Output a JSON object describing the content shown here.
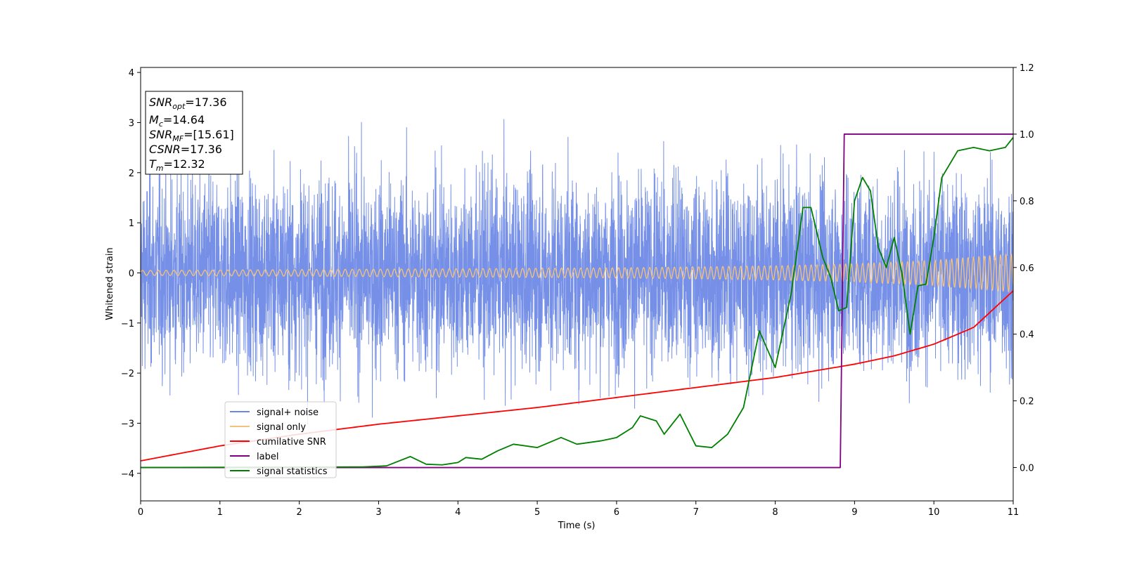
{
  "chart_data": {
    "type": "line",
    "xlabel": "Time (s)",
    "ylabel": "Whitened strain",
    "xlim": [
      0,
      11
    ],
    "ylim": [
      -4.55,
      4.1
    ],
    "y2lim": [
      -0.1,
      1.2
    ],
    "xticks": [
      "0",
      "1",
      "2",
      "3",
      "4",
      "5",
      "6",
      "7",
      "8",
      "9",
      "10",
      "11"
    ],
    "yticks": [
      "−4",
      "−3",
      "−2",
      "−1",
      "0",
      "1",
      "2",
      "3",
      "4"
    ],
    "y2ticks": [
      "0.0",
      "0.2",
      "0.4",
      "0.6",
      "0.8",
      "1.0",
      "1.2"
    ],
    "legend_position": "lower-left",
    "annotation": [
      {
        "sym": "SNR",
        "sub": "opt",
        "value": "=17.36"
      },
      {
        "sym": "M",
        "sub": "c",
        "value": "=14.64"
      },
      {
        "sym": "SNR",
        "sub": "MF",
        "value": "=[15.61]"
      },
      {
        "sym": "CSNR",
        "sub": "",
        "value": "=17.36"
      },
      {
        "sym": "T",
        "sub": "m",
        "value": "=12.32"
      }
    ],
    "series": [
      {
        "name": "signal+ noise",
        "axis": "left",
        "color": "#6a87e6",
        "description_values": "noise-dominated, spans roughly -4.2 to 3.7"
      },
      {
        "name": "signal only",
        "axis": "left",
        "color": "#f4c27a",
        "amplitude": {
          "x": [
            0,
            6,
            8,
            9,
            10,
            11
          ],
          "y": [
            0.05,
            0.1,
            0.14,
            0.18,
            0.25,
            0.38
          ]
        }
      },
      {
        "name": "cumilative SNR",
        "axis": "right",
        "color": "#ff0000",
        "x": [
          0,
          1,
          2,
          3,
          4,
          5,
          6,
          7,
          8,
          8.5,
          9,
          9.5,
          10,
          10.5,
          11
        ],
        "y": [
          0.02,
          0.065,
          0.1,
          0.13,
          0.155,
          0.18,
          0.21,
          0.24,
          0.27,
          0.29,
          0.31,
          0.335,
          0.37,
          0.42,
          0.53
        ]
      },
      {
        "name": "label",
        "axis": "right",
        "color": "#800080",
        "x": [
          0,
          8.82,
          8.87,
          11
        ],
        "y": [
          0,
          0,
          1,
          1
        ]
      },
      {
        "name": "signal statistics",
        "axis": "right",
        "color": "#008000",
        "x": [
          0,
          2.8,
          3.1,
          3.4,
          3.6,
          3.8,
          4.0,
          4.1,
          4.3,
          4.5,
          4.7,
          5.0,
          5.3,
          5.5,
          5.8,
          6.0,
          6.2,
          6.3,
          6.5,
          6.6,
          6.8,
          7.0,
          7.2,
          7.4,
          7.6,
          7.8,
          8.0,
          8.2,
          8.35,
          8.45,
          8.6,
          8.7,
          8.8,
          8.9,
          9.0,
          9.1,
          9.2,
          9.3,
          9.4,
          9.5,
          9.6,
          9.7,
          9.8,
          9.9,
          10.0,
          10.1,
          10.3,
          10.5,
          10.7,
          10.9,
          11.0
        ],
        "y": [
          0,
          0.002,
          0.005,
          0.033,
          0.01,
          0.008,
          0.015,
          0.03,
          0.025,
          0.05,
          0.07,
          0.06,
          0.09,
          0.07,
          0.08,
          0.09,
          0.12,
          0.155,
          0.14,
          0.1,
          0.16,
          0.065,
          0.06,
          0.1,
          0.18,
          0.41,
          0.3,
          0.52,
          0.78,
          0.78,
          0.63,
          0.57,
          0.47,
          0.48,
          0.8,
          0.87,
          0.83,
          0.66,
          0.6,
          0.69,
          0.58,
          0.4,
          0.545,
          0.55,
          0.69,
          0.87,
          0.95,
          0.96,
          0.95,
          0.96,
          0.99
        ]
      }
    ]
  }
}
